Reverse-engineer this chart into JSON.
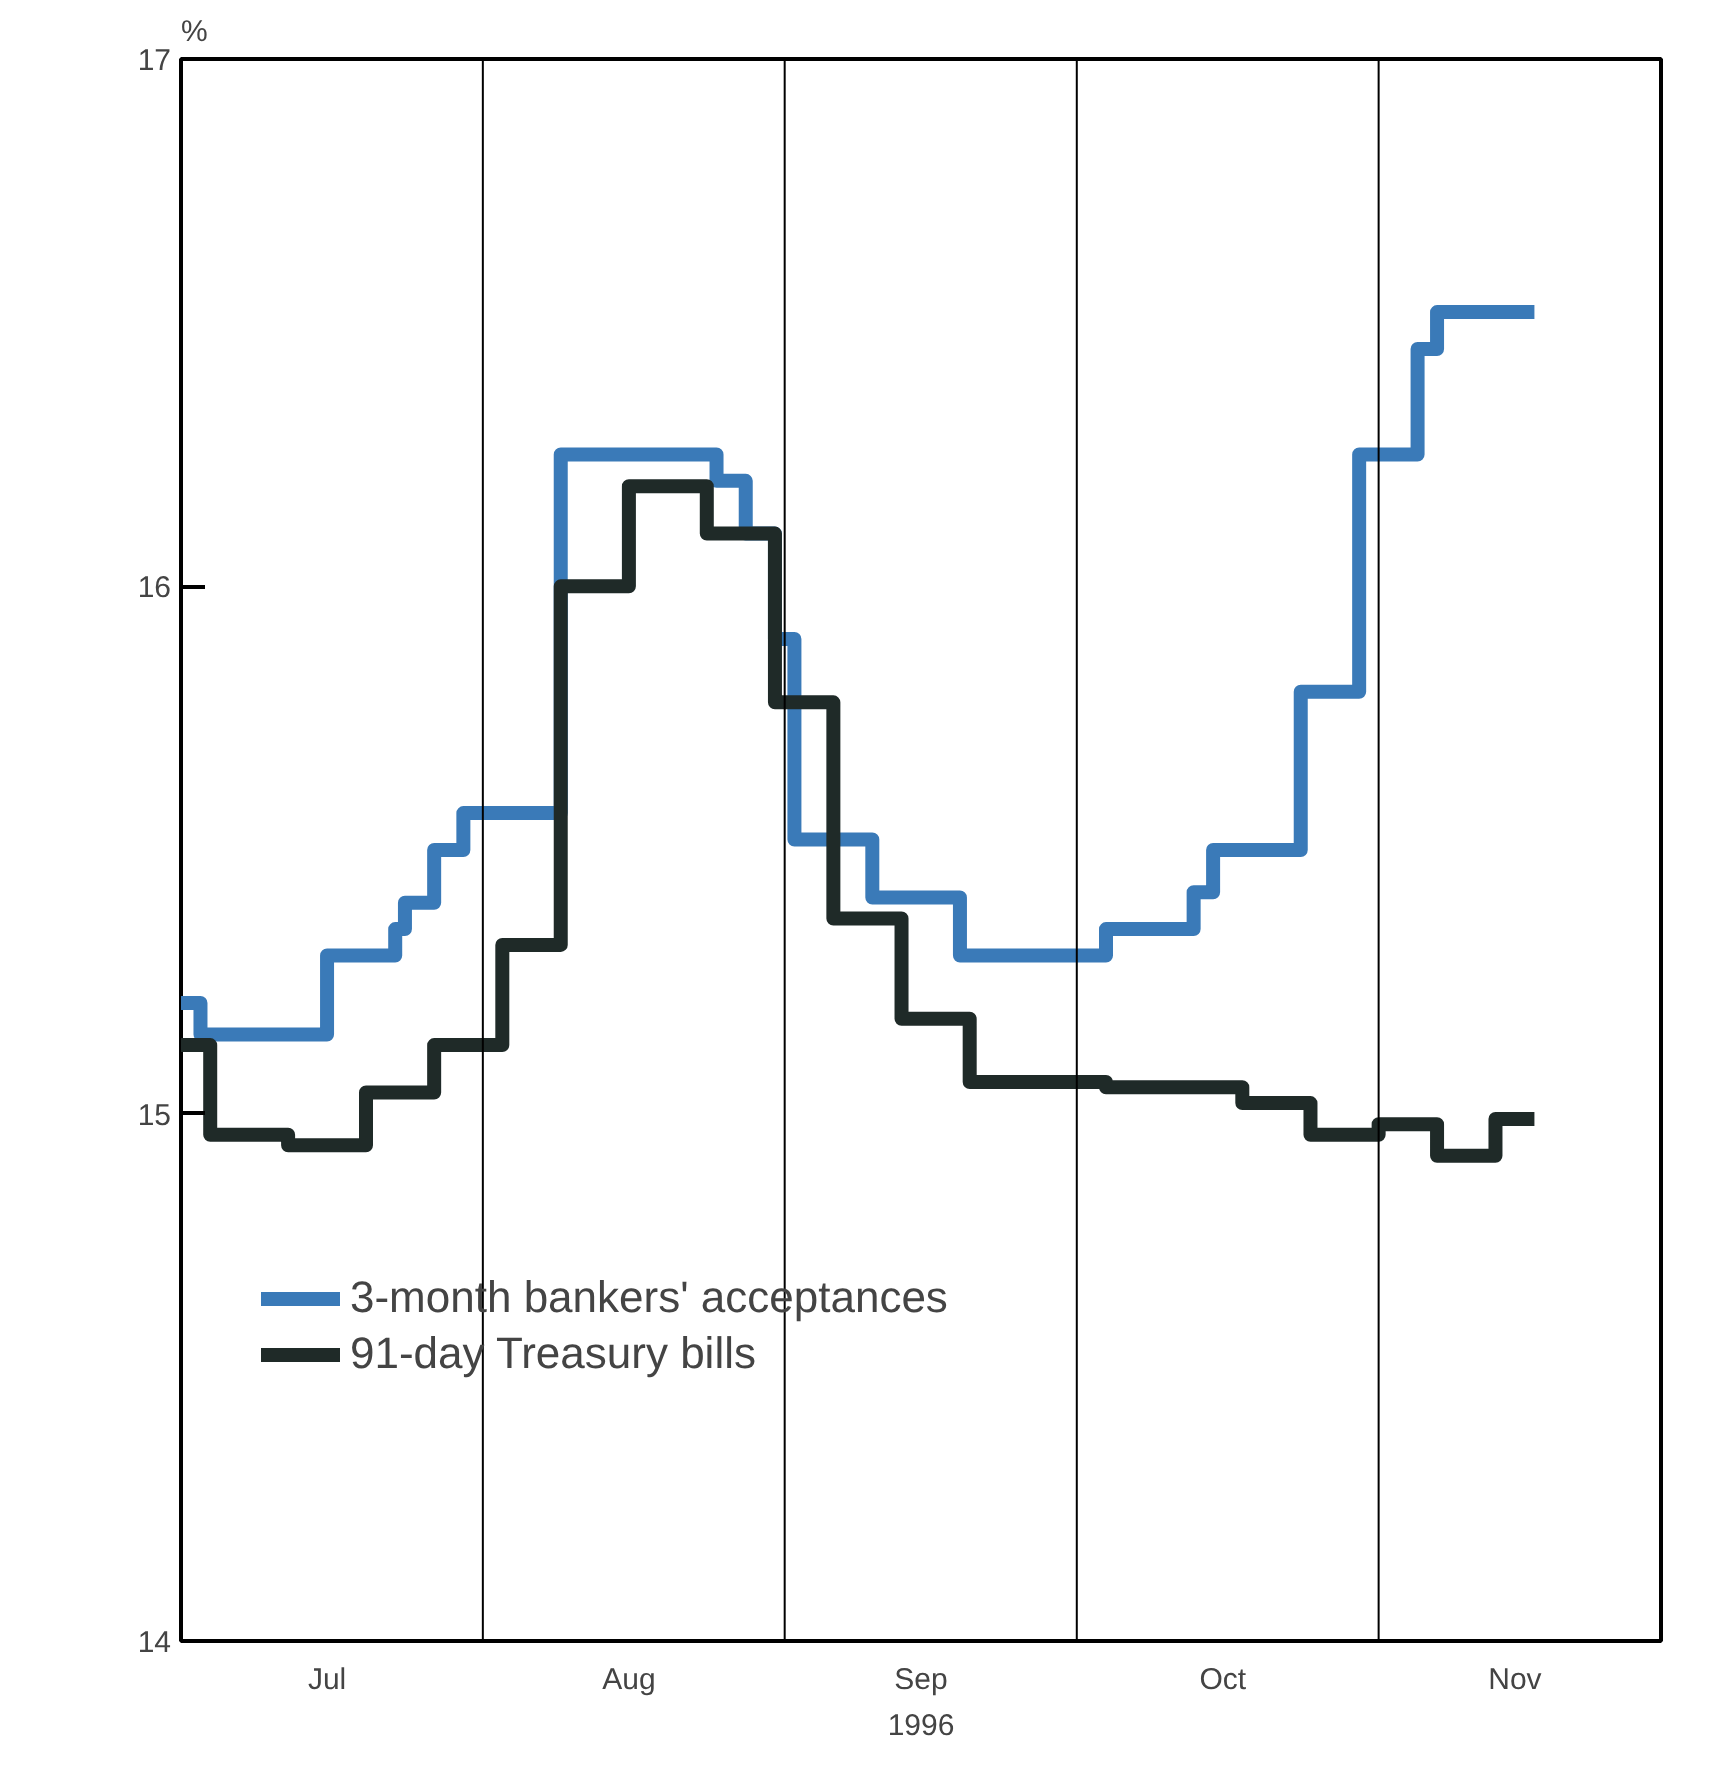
{
  "chart_data": {
    "type": "step",
    "xlabel": "1996",
    "ylabel": "%",
    "x": [
      "1996-07-01",
      "1996-07-03",
      "1996-07-16",
      "1996-07-23",
      "1996-07-24",
      "1996-07-27",
      "1996-07-30",
      "1996-08-09",
      "1996-08-25",
      "1996-08-28",
      "1996-08-31",
      "1996-09-02",
      "1996-09-10",
      "1996-09-19",
      "1996-10-04",
      "1996-10-13",
      "1996-10-15",
      "1996-10-24",
      "1996-10-30",
      "1996-11-05",
      "1996-11-07",
      "1996-11-17"
    ],
    "series": [
      {
        "name": "3-month bankers' acceptances",
        "color": "#3a7ab8",
        "values": [
          15.21,
          15.15,
          15.3,
          15.35,
          15.4,
          15.5,
          15.57,
          16.25,
          16.2,
          16.1,
          15.9,
          15.52,
          15.41,
          15.3,
          15.35,
          15.42,
          15.5,
          15.8,
          16.25,
          16.45,
          16.52,
          16.52
        ]
      },
      {
        "name": "91-day Treasury bills",
        "color": "#1f2a28",
        "x": [
          "1996-07-01",
          "1996-07-04",
          "1996-07-12",
          "1996-07-20",
          "1996-07-27",
          "1996-08-03",
          "1996-08-09",
          "1996-08-16",
          "1996-08-24",
          "1996-08-31",
          "1996-09-06",
          "1996-09-13",
          "1996-09-20",
          "1996-10-04",
          "1996-10-18",
          "1996-10-25",
          "1996-11-01",
          "1996-11-07",
          "1996-11-13",
          "1996-11-17"
        ],
        "values": [
          15.13,
          14.96,
          14.94,
          15.04,
          15.13,
          15.32,
          16.0,
          16.19,
          16.1,
          15.78,
          15.37,
          15.18,
          15.06,
          15.05,
          15.02,
          14.96,
          14.98,
          14.92,
          14.99,
          14.99
        ]
      }
    ],
    "xlim": [
      "1996-07-01",
      "1996-11-30"
    ],
    "xticks": [
      {
        "value": "1996-07-16",
        "label": "Jul"
      },
      {
        "value": "1996-08-16",
        "label": "Aug"
      },
      {
        "value": "1996-09-15",
        "label": "Sep"
      },
      {
        "value": "1996-10-16",
        "label": "Oct"
      },
      {
        "value": "1996-11-15",
        "label": "Nov"
      }
    ],
    "ylim": [
      14,
      17
    ],
    "yticks": [
      14,
      15,
      16,
      17
    ],
    "ref_lines": [
      {
        "axis": "x",
        "value": "1996-08-01",
        "color": "#000000"
      },
      {
        "axis": "x",
        "value": "1996-09-01",
        "color": "#000000"
      },
      {
        "axis": "x",
        "value": "1996-10-01",
        "color": "#000000"
      },
      {
        "axis": "x",
        "value": "1996-11-01",
        "color": "#000000"
      }
    ],
    "legend": "bottom left",
    "grid": false
  }
}
